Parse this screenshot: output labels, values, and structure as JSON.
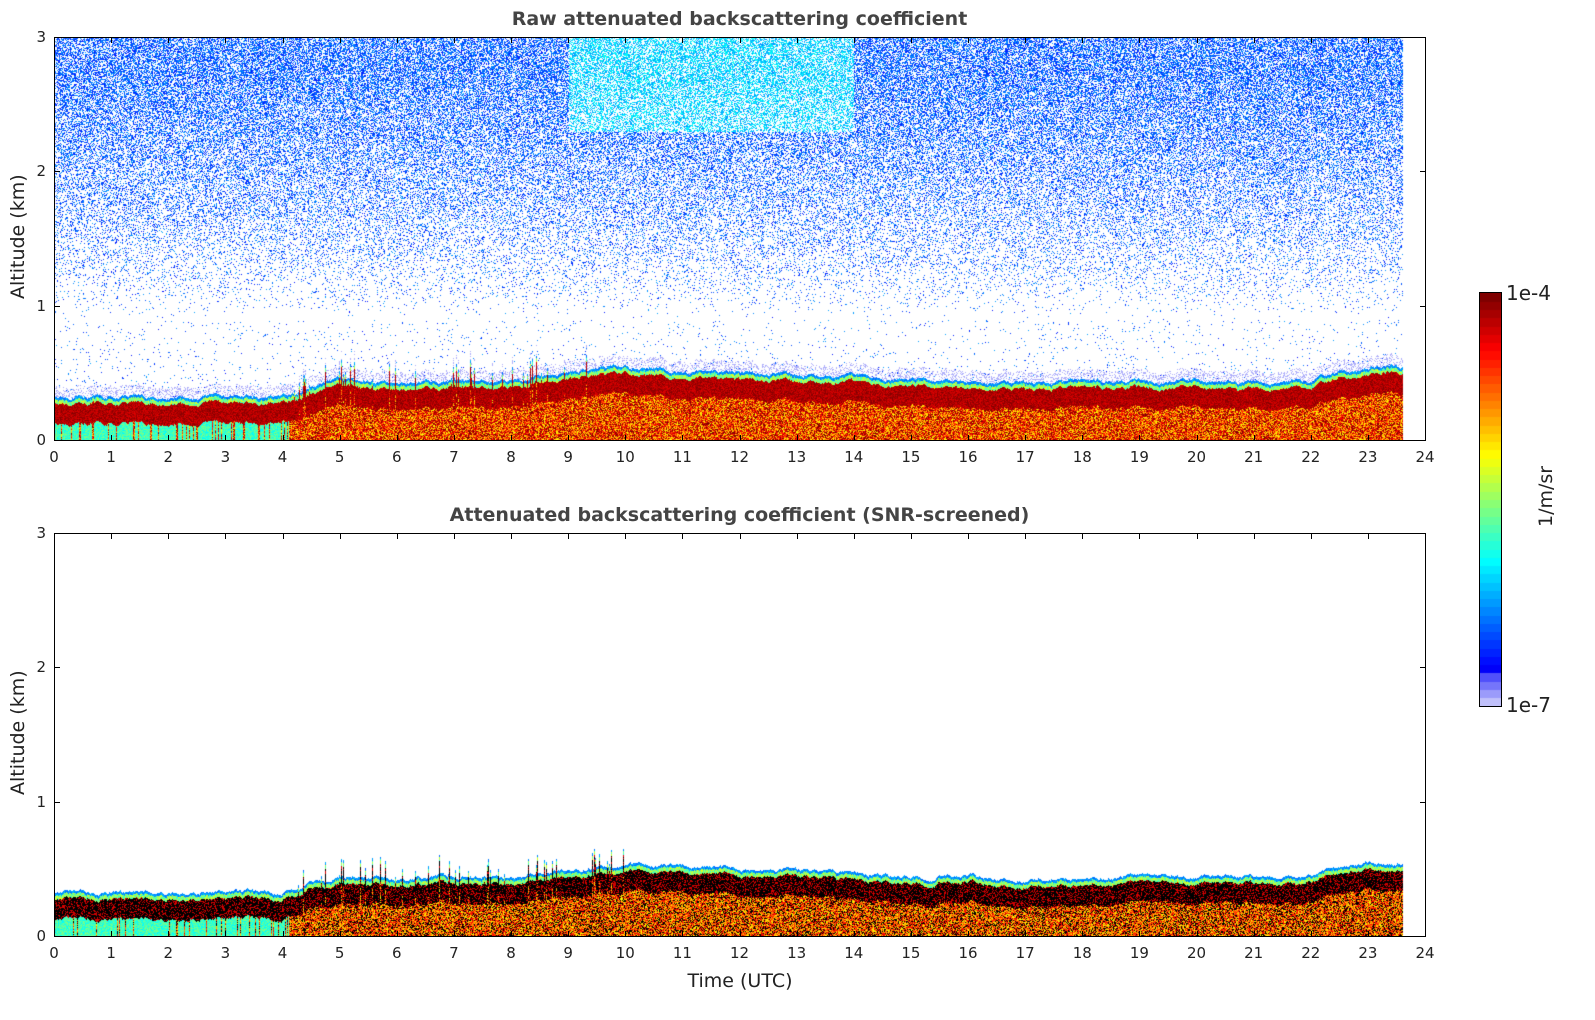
{
  "chart_data": [
    {
      "type": "heatmap",
      "title": "Raw attenuated backscattering coefficient",
      "xlabel": "",
      "ylabel": "Altitude (km)",
      "xlim": [
        0,
        24
      ],
      "ylim": [
        0,
        3
      ],
      "xticks": [
        0,
        1,
        2,
        3,
        4,
        5,
        6,
        7,
        8,
        9,
        10,
        11,
        12,
        13,
        14,
        15,
        16,
        17,
        18,
        19,
        20,
        21,
        22,
        23,
        24
      ],
      "yticks": [
        0,
        1,
        2,
        3
      ],
      "screened": false
    },
    {
      "type": "heatmap",
      "title": "Attenuated backscattering coefficient (SNR-screened)",
      "xlabel": "Time (UTC)",
      "ylabel": "Altitude (km)",
      "xlim": [
        0,
        24
      ],
      "ylim": [
        0,
        3
      ],
      "xticks": [
        0,
        1,
        2,
        3,
        4,
        5,
        6,
        7,
        8,
        9,
        10,
        11,
        12,
        13,
        14,
        15,
        16,
        17,
        18,
        19,
        20,
        21,
        22,
        23,
        24
      ],
      "yticks": [
        0,
        1,
        2,
        3
      ],
      "screened": true
    }
  ],
  "layer_top_km": {
    "hours": [
      0,
      1,
      2,
      3,
      4,
      5,
      6,
      7,
      8,
      9,
      10,
      11,
      12,
      13,
      14,
      15,
      16,
      17,
      18,
      19,
      20,
      21,
      22,
      23,
      23.6
    ],
    "values": [
      0.33,
      0.33,
      0.33,
      0.33,
      0.33,
      0.45,
      0.42,
      0.45,
      0.45,
      0.5,
      0.55,
      0.52,
      0.5,
      0.48,
      0.48,
      0.45,
      0.45,
      0.43,
      0.45,
      0.45,
      0.45,
      0.43,
      0.45,
      0.55,
      0.55
    ]
  },
  "data_end_hour": 23.6,
  "colorbar": {
    "label": "1/m/sr",
    "max_label": "1e-4",
    "min_label": "1e-7",
    "colormap": "jet"
  }
}
